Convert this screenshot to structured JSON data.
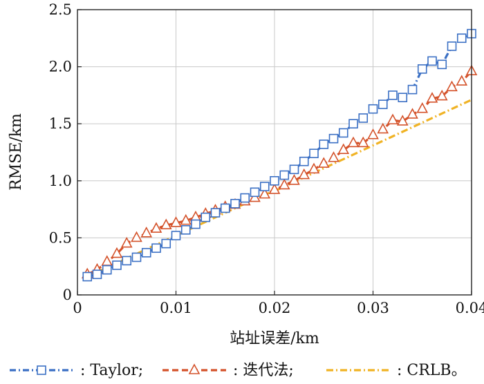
{
  "chart_data": {
    "type": "line",
    "xlabel": "站址误差/km",
    "ylabel": "RMSE/km",
    "xlim": [
      0,
      0.04
    ],
    "ylim": [
      0,
      2.5
    ],
    "xticks": [
      "0",
      "0.01",
      "0.02",
      "0.03",
      "0.04"
    ],
    "yticks": [
      "0",
      "0.5",
      "1.0",
      "1.5",
      "2.0",
      "2.5"
    ],
    "xtick_values": [
      0,
      0.01,
      0.02,
      0.03,
      0.04
    ],
    "ytick_values": [
      0,
      0.5,
      1.0,
      1.5,
      2.0,
      2.5
    ],
    "grid": true,
    "legend_position": "bottom",
    "x": [
      0.001,
      0.002,
      0.003,
      0.004,
      0.005,
      0.006,
      0.007,
      0.008,
      0.009,
      0.01,
      0.011,
      0.012,
      0.013,
      0.014,
      0.015,
      0.016,
      0.017,
      0.018,
      0.019,
      0.02,
      0.021,
      0.022,
      0.023,
      0.024,
      0.025,
      0.026,
      0.027,
      0.028,
      0.029,
      0.03,
      0.031,
      0.032,
      0.033,
      0.034,
      0.035,
      0.036,
      0.037,
      0.038,
      0.039,
      0.04
    ],
    "series": [
      {
        "name": ": Taylor;",
        "color": "#3a6fc4",
        "marker": "square",
        "dash": "9,4,2,4",
        "values": [
          0.16,
          0.18,
          0.22,
          0.26,
          0.3,
          0.33,
          0.37,
          0.41,
          0.45,
          0.52,
          0.57,
          0.62,
          0.68,
          0.72,
          0.76,
          0.8,
          0.85,
          0.9,
          0.95,
          1.0,
          1.05,
          1.1,
          1.17,
          1.24,
          1.32,
          1.37,
          1.42,
          1.5,
          1.55,
          1.63,
          1.67,
          1.75,
          1.73,
          1.8,
          1.98,
          2.05,
          2.02,
          2.18,
          2.25,
          2.29
        ]
      },
      {
        "name": ": 迭代法;",
        "color": "#d4522a",
        "marker": "triangle",
        "dash": "9,5",
        "values": [
          0.18,
          0.22,
          0.29,
          0.36,
          0.45,
          0.5,
          0.54,
          0.58,
          0.61,
          0.63,
          0.65,
          0.68,
          0.71,
          0.74,
          0.77,
          0.79,
          0.82,
          0.85,
          0.88,
          0.92,
          0.96,
          1.0,
          1.05,
          1.1,
          1.15,
          1.2,
          1.27,
          1.33,
          1.33,
          1.4,
          1.45,
          1.53,
          1.52,
          1.58,
          1.63,
          1.72,
          1.74,
          1.82,
          1.87,
          1.96
        ]
      },
      {
        "name": ": CRLB。",
        "color": "#f0b325",
        "marker": "none",
        "dash": "10,4,2,4",
        "values": [
          0.16,
          0.2,
          0.24,
          0.28,
          0.32,
          0.36,
          0.4,
          0.44,
          0.48,
          0.52,
          0.56,
          0.6,
          0.64,
          0.68,
          0.72,
          0.76,
          0.8,
          0.84,
          0.88,
          0.91,
          0.95,
          0.99,
          1.03,
          1.07,
          1.11,
          1.15,
          1.19,
          1.23,
          1.27,
          1.31,
          1.35,
          1.39,
          1.43,
          1.47,
          1.51,
          1.55,
          1.59,
          1.63,
          1.67,
          1.71
        ]
      }
    ]
  }
}
